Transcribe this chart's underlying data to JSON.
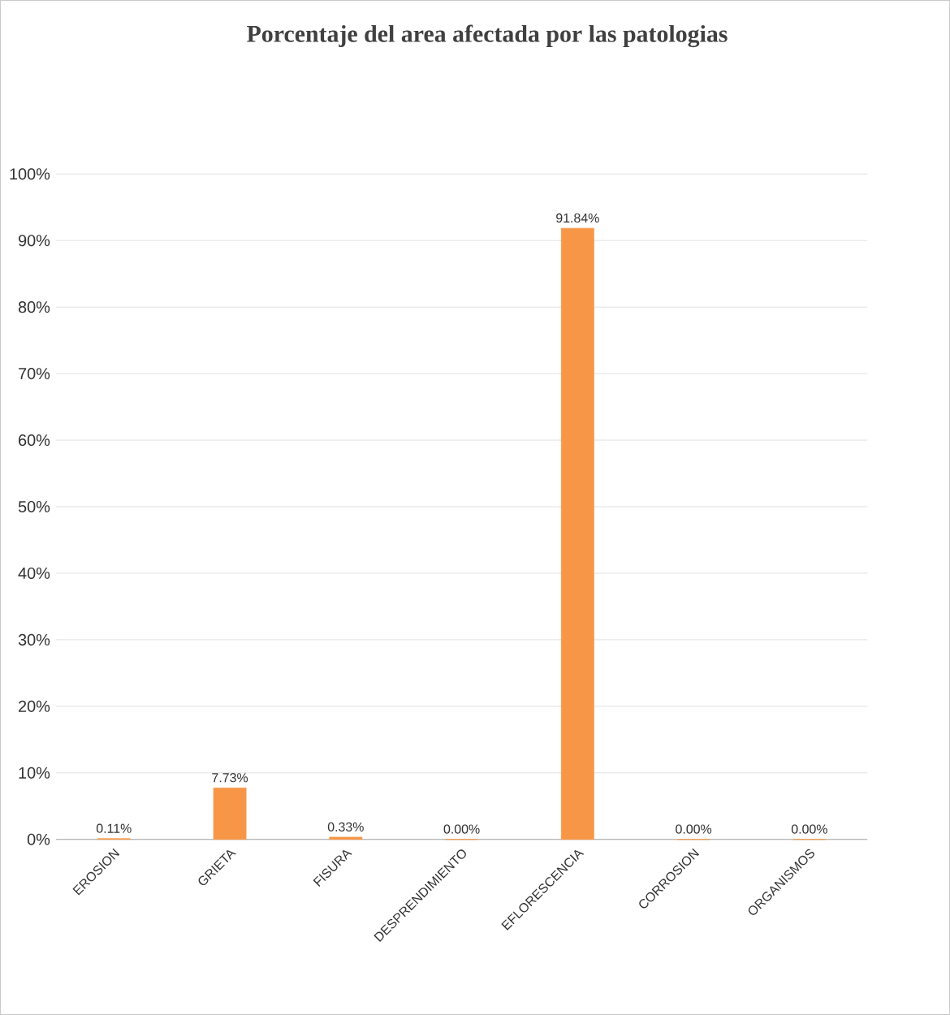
{
  "chart_data": {
    "type": "bar",
    "title": "Porcentaje del area afectada por las patologias",
    "categories": [
      "EROSION",
      "GRIETA",
      "FISURA",
      "DESPRENDIMIENTO",
      "EFLORESCENCIA",
      "CORROSION",
      "ORGANISMOS"
    ],
    "values": [
      0.11,
      7.73,
      0.33,
      0.0,
      91.84,
      0.0,
      0.0
    ],
    "value_labels": [
      "0.11%",
      "7.73%",
      "0.33%",
      "0.00%",
      "91.84%",
      "0.00%",
      "0.00%"
    ],
    "color": "#f79646",
    "ylim": [
      0,
      100
    ],
    "yticks": [
      {
        "value": 0,
        "label": "0%"
      },
      {
        "value": 10,
        "label": "10%"
      },
      {
        "value": 20,
        "label": "20%"
      },
      {
        "value": 30,
        "label": "30%"
      },
      {
        "value": 40,
        "label": "40%"
      },
      {
        "value": 50,
        "label": "50%"
      },
      {
        "value": 60,
        "label": "60%"
      },
      {
        "value": 70,
        "label": "70%"
      },
      {
        "value": 80,
        "label": "80%"
      },
      {
        "value": 90,
        "label": "90%"
      },
      {
        "value": 100,
        "label": "100%"
      }
    ],
    "grid": "y"
  }
}
